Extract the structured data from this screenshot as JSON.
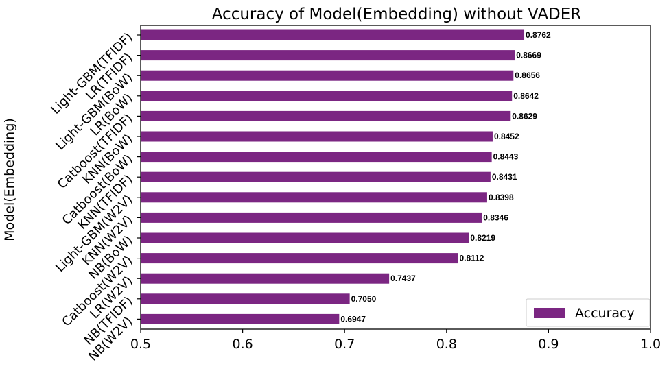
{
  "chart_data": {
    "type": "bar",
    "orientation": "horizontal",
    "title": "Accuracy of Model(Embedding) without VADER",
    "xlabel": "",
    "ylabel": "Model(Embedding)",
    "xlim": [
      0.5,
      1.0
    ],
    "xticks": [
      0.5,
      0.6,
      0.7,
      0.8,
      0.9,
      1.0
    ],
    "xtick_labels": [
      "0.5",
      "0.6",
      "0.7",
      "0.8",
      "0.9",
      "1.0"
    ],
    "grid": false,
    "legend_position": "bottom-right",
    "bar_color": "#7b2682",
    "categories": [
      "Light-GBM(TFIDF)",
      "LR(TFIDF)",
      "Light-GBM(BoW)",
      "LR(BoW)",
      "Catboost(TFIDF)",
      "KNN(BoW)",
      "Catboost(BoW)",
      "KNN(TFIDF)",
      "Light-GBM(W2V)",
      "KNN(W2V)",
      "NB(BoW)",
      "Catboost(W2V)",
      "LR(W2V)",
      "NB(TFIDF)",
      "NB(W2V)"
    ],
    "series": [
      {
        "name": "Accuracy",
        "values": [
          0.8762,
          0.8669,
          0.8656,
          0.8642,
          0.8629,
          0.8452,
          0.8443,
          0.8431,
          0.8398,
          0.8346,
          0.8219,
          0.8112,
          0.7437,
          0.705,
          0.6947
        ],
        "value_labels": [
          "0.8762",
          "0.8669",
          "0.8656",
          "0.8642",
          "0.8629",
          "0.8452",
          "0.8443",
          "0.8431",
          "0.8398",
          "0.8346",
          "0.8219",
          "0.8112",
          "0.7437",
          "0.7050",
          "0.6947"
        ]
      }
    ]
  }
}
